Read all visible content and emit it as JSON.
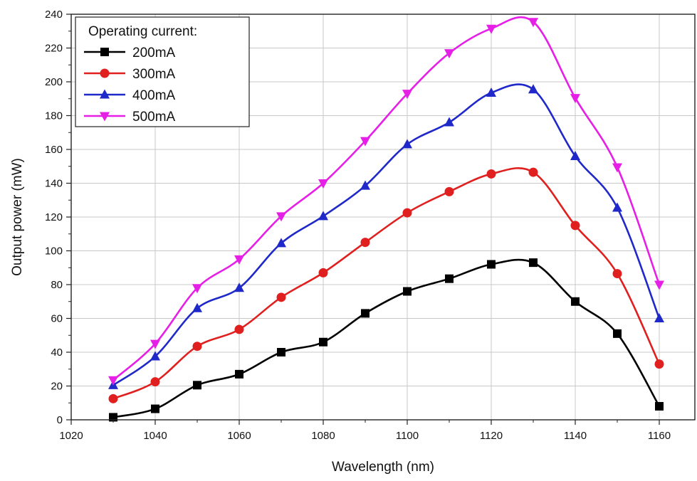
{
  "chart_data": {
    "type": "line",
    "xlabel": "Wavelength (nm)",
    "ylabel": "Output power (mW)",
    "xlim": [
      1020,
      1170
    ],
    "ylim": [
      0,
      240
    ],
    "x_ticks": [
      1020,
      1040,
      1060,
      1080,
      1100,
      1120,
      1140,
      1160
    ],
    "y_ticks": [
      0,
      20,
      40,
      60,
      80,
      100,
      120,
      140,
      160,
      180,
      200,
      220,
      240
    ],
    "grid": true,
    "legend": {
      "title": "Operating current:",
      "placement": "top-left"
    },
    "x": [
      1030,
      1040,
      1050,
      1060,
      1070,
      1080,
      1090,
      1100,
      1110,
      1120,
      1130,
      1140,
      1150,
      1160
    ],
    "series": [
      {
        "name": "200mA",
        "color": "#000000",
        "marker": "square",
        "values": [
          1.5,
          6.5,
          20.5,
          27,
          40,
          46,
          63,
          76,
          83.5,
          92,
          93,
          70,
          51,
          8
        ]
      },
      {
        "name": "300mA",
        "color": "#e0201f",
        "marker": "circle",
        "values": [
          12.5,
          22.5,
          43.5,
          53.5,
          72.5,
          87,
          105,
          122.5,
          135,
          145.5,
          146.5,
          115,
          86.5,
          33
        ]
      },
      {
        "name": "400mA",
        "color": "#1f28c8",
        "marker": "triangle-up",
        "values": [
          20.5,
          37.5,
          66,
          78,
          104.5,
          120.5,
          138.5,
          163,
          176,
          193.5,
          195.5,
          156,
          125.5,
          60
        ]
      },
      {
        "name": "500mA",
        "color": "#e61fe6",
        "marker": "triangle-down",
        "values": [
          23.5,
          45,
          78,
          95,
          120.5,
          140,
          165,
          193,
          217,
          231.5,
          235.5,
          190.5,
          149.5,
          80
        ]
      }
    ]
  }
}
